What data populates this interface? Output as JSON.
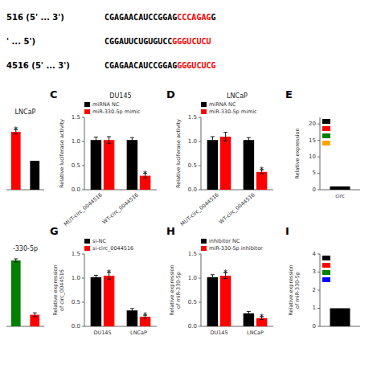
{
  "chart_data": [
    {
      "type": "text",
      "annotations": [
        [
          {
            "text": "516 (5' ... 3')"
          },
          {
            "text": "CGAGAACAUCCGGAG"
          },
          {
            "text": "CCCAGAG",
            "color": "red"
          },
          {
            "text": "G"
          }
        ],
        [
          {
            "text": "' ... 5')"
          },
          {
            "text": "CGGAUUCUGUGUCC"
          },
          {
            "text": "GGGUCUCU",
            "color": "red"
          }
        ],
        [
          {
            "text": "4516 (5' ... 3')"
          },
          {
            "text": "CGAGAACAUCCGGAG"
          },
          {
            "text": "GGGUCUCG",
            "color": "red"
          }
        ]
      ]
    },
    {
      "type": "bar",
      "title": "LNCaP",
      "categories": [
        null,
        null
      ],
      "series": [
        {
          "colors": [
            "red",
            "black"
          ],
          "values": [
            2.0,
            1.0
          ],
          "errors": [
            0.08,
            null
          ],
          "annotations": [
            "*",
            null
          ]
        }
      ],
      "ylim": [
        0,
        2.5
      ],
      "tick_labels": false
    },
    {
      "type": "bar",
      "title": "DU145",
      "ylabel": "Relative luciferase activity",
      "annotations": [
        "C"
      ],
      "categories": [
        "MUT-circ_0044516",
        "WT-circ_0044516"
      ],
      "series": [
        {
          "name": "miRNA NC",
          "color": "black",
          "values": [
            1.03,
            1.03
          ],
          "errors": [
            0.06,
            0.05
          ]
        },
        {
          "name": "miR-330-5p mimic",
          "color": "red",
          "values": [
            1.03,
            0.29
          ],
          "errors": [
            0.07,
            0.05
          ],
          "annotations": [
            null,
            "*"
          ]
        }
      ],
      "ylim": [
        0,
        1.5
      ],
      "yticks": [
        {
          "value": 0,
          "label": "0.0"
        },
        0.5,
        {
          "value": 1,
          "label": "1.0"
        },
        1.5
      ]
    },
    {
      "type": "bar",
      "title": "LNCaP",
      "ylabel": "Relative luciferase activity",
      "annotations": [
        "D"
      ],
      "categories": [
        "MUT-circ_0044516",
        "WT-circ_0044516"
      ],
      "series": [
        {
          "name": "miRNA NC",
          "color": "black",
          "values": [
            1.03,
            1.03
          ],
          "errors": [
            0.07,
            0.05
          ]
        },
        {
          "name": "miR-330-5p mimic",
          "color": "red",
          "values": [
            1.1,
            0.37
          ],
          "errors": [
            0.09,
            0.04
          ],
          "annotations": [
            null,
            "*"
          ]
        }
      ],
      "ylim": [
        0,
        1.5
      ],
      "yticks": [
        {
          "value": 0,
          "label": "0.0"
        },
        0.5,
        {
          "value": 1,
          "label": "1.0"
        },
        1.5
      ]
    },
    {
      "type": "bar",
      "ylabel": "Relative expression",
      "annotations": [
        "E"
      ],
      "categories": [
        "circ"
      ],
      "series": [
        {
          "color": "black",
          "values": [
            1.0
          ]
        },
        {
          "color": "red",
          "values": [
            null
          ]
        },
        {
          "color": "green",
          "values": [
            null
          ]
        },
        {
          "color": "orange",
          "values": [
            null
          ]
        }
      ],
      "ylim": [
        0,
        22
      ],
      "yticks": [
        0,
        5,
        10,
        15,
        20
      ]
    },
    {
      "type": "bar",
      "title": "-330-5p",
      "categories": [
        null,
        null
      ],
      "series": [
        {
          "colors": [
            "green",
            "red"
          ],
          "values": [
            4.1,
            0.72
          ],
          "errors": [
            0.1,
            0.12
          ]
        }
      ],
      "ylim": [
        0,
        4.5
      ],
      "tick_labels": false
    },
    {
      "type": "bar",
      "ylabel": "Relative expression\nof circ_0044516",
      "annotations": [
        "G"
      ],
      "categories": [
        "DU145",
        "LNCaP"
      ],
      "series": [
        {
          "name": "si-NC",
          "color": "black",
          "values": [
            1.02,
            0.33
          ],
          "errors": [
            0.04,
            0.04
          ]
        },
        {
          "name": "si-circ_0044516",
          "color": "red",
          "values": [
            1.05,
            0.2
          ],
          "errors": [
            0.07,
            0.03
          ],
          "annotations": [
            "*",
            "*"
          ]
        }
      ],
      "ylim": [
        0,
        1.5
      ],
      "yticks": [
        {
          "value": 0,
          "label": "0.0"
        },
        0.5,
        {
          "value": 1,
          "label": "1.0"
        },
        1.5
      ]
    },
    {
      "type": "bar",
      "ylabel": "Relative expression\nof miR-330-5p",
      "annotations": [
        "H"
      ],
      "categories": [
        "DU145",
        "LNCaP"
      ],
      "series": [
        {
          "name": "inhibitor NC",
          "color": "black",
          "values": [
            1.02,
            0.27
          ],
          "errors": [
            0.05,
            0.04
          ]
        },
        {
          "name": "miR-330-5p inhibitor",
          "color": "red",
          "values": [
            1.05,
            0.17
          ],
          "errors": [
            0.06,
            0.03
          ],
          "annotations": [
            "*",
            "*"
          ]
        }
      ],
      "ylim": [
        0,
        1.5
      ],
      "yticks": [
        {
          "value": 0,
          "label": "0.0"
        },
        0.5,
        {
          "value": 1,
          "label": "1.0"
        },
        1.5
      ]
    },
    {
      "type": "bar",
      "ylabel": "Relative expression\nof miR-330-5p",
      "annotations": [
        "I"
      ],
      "categories": [
        null
      ],
      "series": [
        {
          "color": "black",
          "values": [
            1.0
          ]
        },
        {
          "color": "red",
          "values": [
            null
          ]
        },
        {
          "color": "green",
          "values": [
            null
          ]
        },
        {
          "color": "blue",
          "values": [
            null
          ]
        }
      ],
      "ylim": [
        0,
        4
      ],
      "yticks": [
        0,
        1,
        2,
        3,
        4
      ]
    }
  ]
}
